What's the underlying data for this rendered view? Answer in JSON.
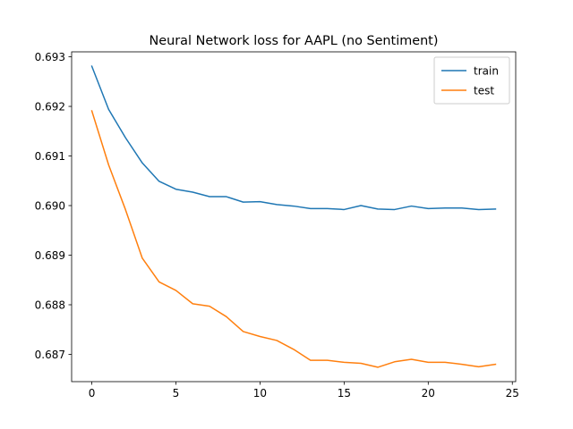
{
  "chart_data": {
    "type": "line",
    "title": "Neural Network loss for AAPL (no Sentiment)",
    "xlabel": "",
    "ylabel": "",
    "xlim": [
      -1.2,
      25.2
    ],
    "ylim": [
      0.68645,
      0.6931
    ],
    "x_ticks": [
      0,
      5,
      10,
      15,
      20,
      25
    ],
    "y_ticks": [
      0.687,
      0.688,
      0.689,
      0.69,
      0.691,
      0.692,
      0.693
    ],
    "x_tick_labels": [
      "0",
      "5",
      "10",
      "15",
      "20",
      "25"
    ],
    "y_tick_labels": [
      "0.687",
      "0.688",
      "0.689",
      "0.690",
      "0.691",
      "0.692",
      "0.693"
    ],
    "grid": false,
    "legend_position": "top-right",
    "x": [
      0,
      1,
      2,
      3,
      4,
      5,
      6,
      7,
      8,
      9,
      10,
      11,
      12,
      13,
      14,
      15,
      16,
      17,
      18,
      19,
      20,
      21,
      22,
      23,
      24
    ],
    "series": [
      {
        "name": "train",
        "color": "#1f77b4",
        "values": [
          0.69281,
          0.69194,
          0.69137,
          0.69086,
          0.69049,
          0.69033,
          0.69027,
          0.69018,
          0.69018,
          0.69007,
          0.69008,
          0.69002,
          0.68999,
          0.68994,
          0.68994,
          0.68992,
          0.69,
          0.68993,
          0.68992,
          0.68999,
          0.68994,
          0.68995,
          0.68995,
          0.68992,
          0.68993
        ]
      },
      {
        "name": "test",
        "color": "#ff7f0e",
        "values": [
          0.69191,
          0.69082,
          0.68992,
          0.68894,
          0.68846,
          0.68829,
          0.68802,
          0.68797,
          0.68776,
          0.68746,
          0.68736,
          0.68728,
          0.6871,
          0.68688,
          0.68688,
          0.68684,
          0.68682,
          0.68674,
          0.68685,
          0.6869,
          0.68684,
          0.68684,
          0.6868,
          0.68675,
          0.6868
        ]
      }
    ]
  }
}
